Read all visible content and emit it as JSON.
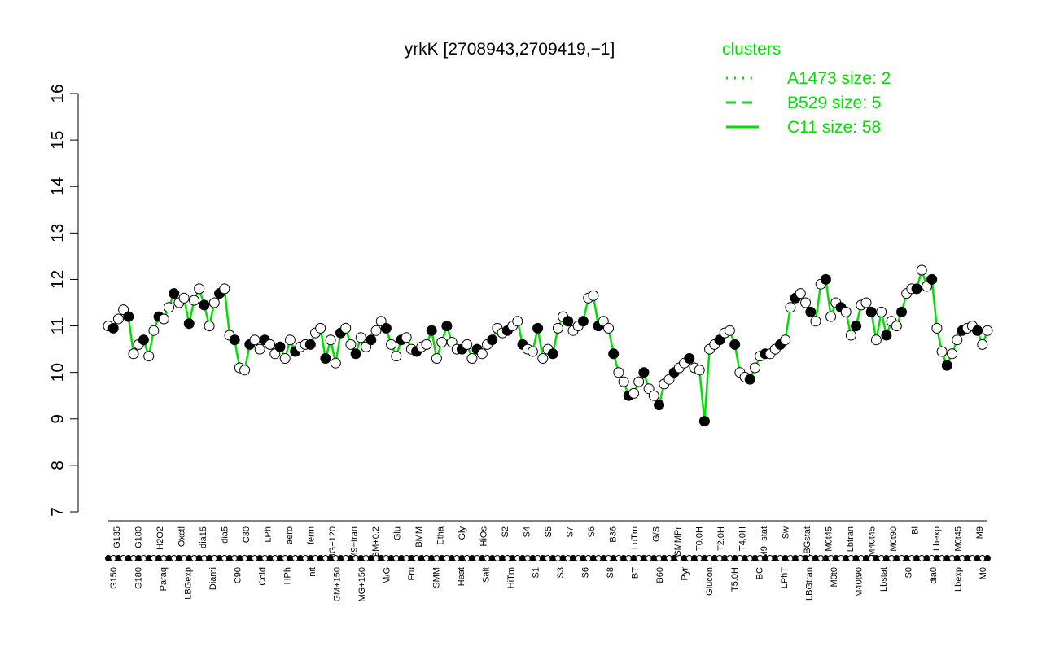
{
  "chart_data": {
    "type": "line",
    "title": "yrkK [2708943,2709419,−1]",
    "ylim": [
      7,
      16
    ],
    "yticks": [
      "7",
      "8",
      "9",
      "10",
      "11",
      "12",
      "13",
      "14",
      "15",
      "16"
    ],
    "tick_labels_top": [
      "G135",
      "G180",
      "H2O2",
      "Oxctl",
      "dia15",
      "dia5",
      "C30",
      "LPh",
      "aero",
      "ferm",
      "MG+120",
      "M9−tran",
      "GM+0.2",
      "Glu",
      "BMM",
      "Etha",
      "Gly",
      "HiOs",
      "S2",
      "S4",
      "S5",
      "S7",
      "S6",
      "B36",
      "LoTm",
      "G/S",
      "SMMPr",
      "T0.0H",
      "T2.0H",
      "T4.0H",
      "M9−stat",
      "Sw",
      "LBGstat",
      "M0t45",
      "Lbtran",
      "M40t45",
      "M0t90",
      "Bl",
      "Lbexp",
      "M0t45",
      "M9"
    ],
    "tick_labels_bottom": [
      "G150",
      "G180",
      "Paraq",
      "LBGexp",
      "Diami",
      "C90",
      "Cold",
      "HPh",
      "nit",
      "GM+150",
      "MG+150",
      "M/G",
      "Fru",
      "SMM",
      "Heat",
      "Salt",
      "HiTm",
      "S1",
      "S3",
      "S6",
      "S8",
      "BT",
      "B60",
      "Pyr",
      "Glucon",
      "T5.0H",
      "BC",
      "LPhT",
      "LBGtran",
      "M0t0",
      "M40t90",
      "Lbstat",
      "S0",
      "dia0",
      "Lbexp",
      "M0"
    ],
    "series_profile": [
      11.0,
      10.95,
      11.15,
      11.35,
      11.2,
      10.4,
      10.6,
      10.7,
      10.35,
      10.9,
      11.2,
      11.15,
      11.4,
      11.7,
      11.5,
      11.6,
      11.05,
      11.55,
      11.8,
      11.45,
      11.0,
      11.5,
      11.7,
      11.8,
      10.8,
      10.7,
      10.1,
      10.05,
      10.6,
      10.7,
      10.5,
      10.7,
      10.6,
      10.4,
      10.55,
      10.3,
      10.7,
      10.45,
      10.55,
      10.6,
      10.6,
      10.85,
      10.95,
      10.3,
      10.7,
      10.2,
      10.85,
      10.95,
      10.6,
      10.4,
      10.75,
      10.55,
      10.7,
      10.9,
      11.1,
      10.95,
      10.6,
      10.35,
      10.7,
      10.75,
      10.5,
      10.45,
      10.55,
      10.6,
      10.9,
      10.3,
      10.65,
      11.0,
      10.65,
      10.5,
      10.5,
      10.6,
      10.3,
      10.5,
      10.4,
      10.6,
      10.7,
      10.95,
      10.85,
      10.9,
      11.0,
      11.1,
      10.6,
      10.5,
      10.45,
      10.95,
      10.3,
      10.5,
      10.4,
      10.95,
      11.2,
      11.1,
      10.9,
      11.0,
      11.1,
      11.6,
      11.65,
      11.0,
      11.1,
      10.95,
      10.4,
      10.0,
      9.8,
      9.5,
      9.55,
      9.8,
      10.0,
      9.65,
      9.5,
      9.3,
      9.75,
      9.85,
      10.0,
      10.1,
      10.2,
      10.3,
      10.1,
      10.05,
      8.95,
      10.5,
      10.6,
      10.7,
      10.85,
      10.9,
      10.6,
      10.0,
      9.9,
      9.85,
      10.1,
      10.35,
      10.4,
      10.4,
      10.5,
      10.6,
      10.7,
      11.4,
      11.6,
      11.7,
      11.5,
      11.3,
      11.1,
      11.9,
      12.0,
      11.2,
      11.5,
      11.4,
      11.3,
      10.8,
      11.0,
      11.45,
      11.5,
      11.3,
      10.7,
      11.3,
      10.8,
      11.1,
      11.0,
      11.3,
      11.7,
      11.8,
      11.8,
      12.2,
      11.85,
      12.0,
      10.95,
      10.45,
      10.15,
      10.4,
      10.7,
      10.9,
      10.95,
      11.0,
      10.9,
      10.6,
      10.9
    ],
    "legend": {
      "title": "clusters",
      "entries": [
        {
          "label": "A1473 size: 2",
          "style": "dotted"
        },
        {
          "label": "B529 size: 5",
          "style": "dashed"
        },
        {
          "label": "C11 size: 58",
          "style": "solid"
        }
      ],
      "color": "#00e000"
    },
    "colors": {
      "axis": "#000000",
      "line": "#00e000",
      "point_open": "#ffffff",
      "point_filled": "#000000"
    }
  }
}
